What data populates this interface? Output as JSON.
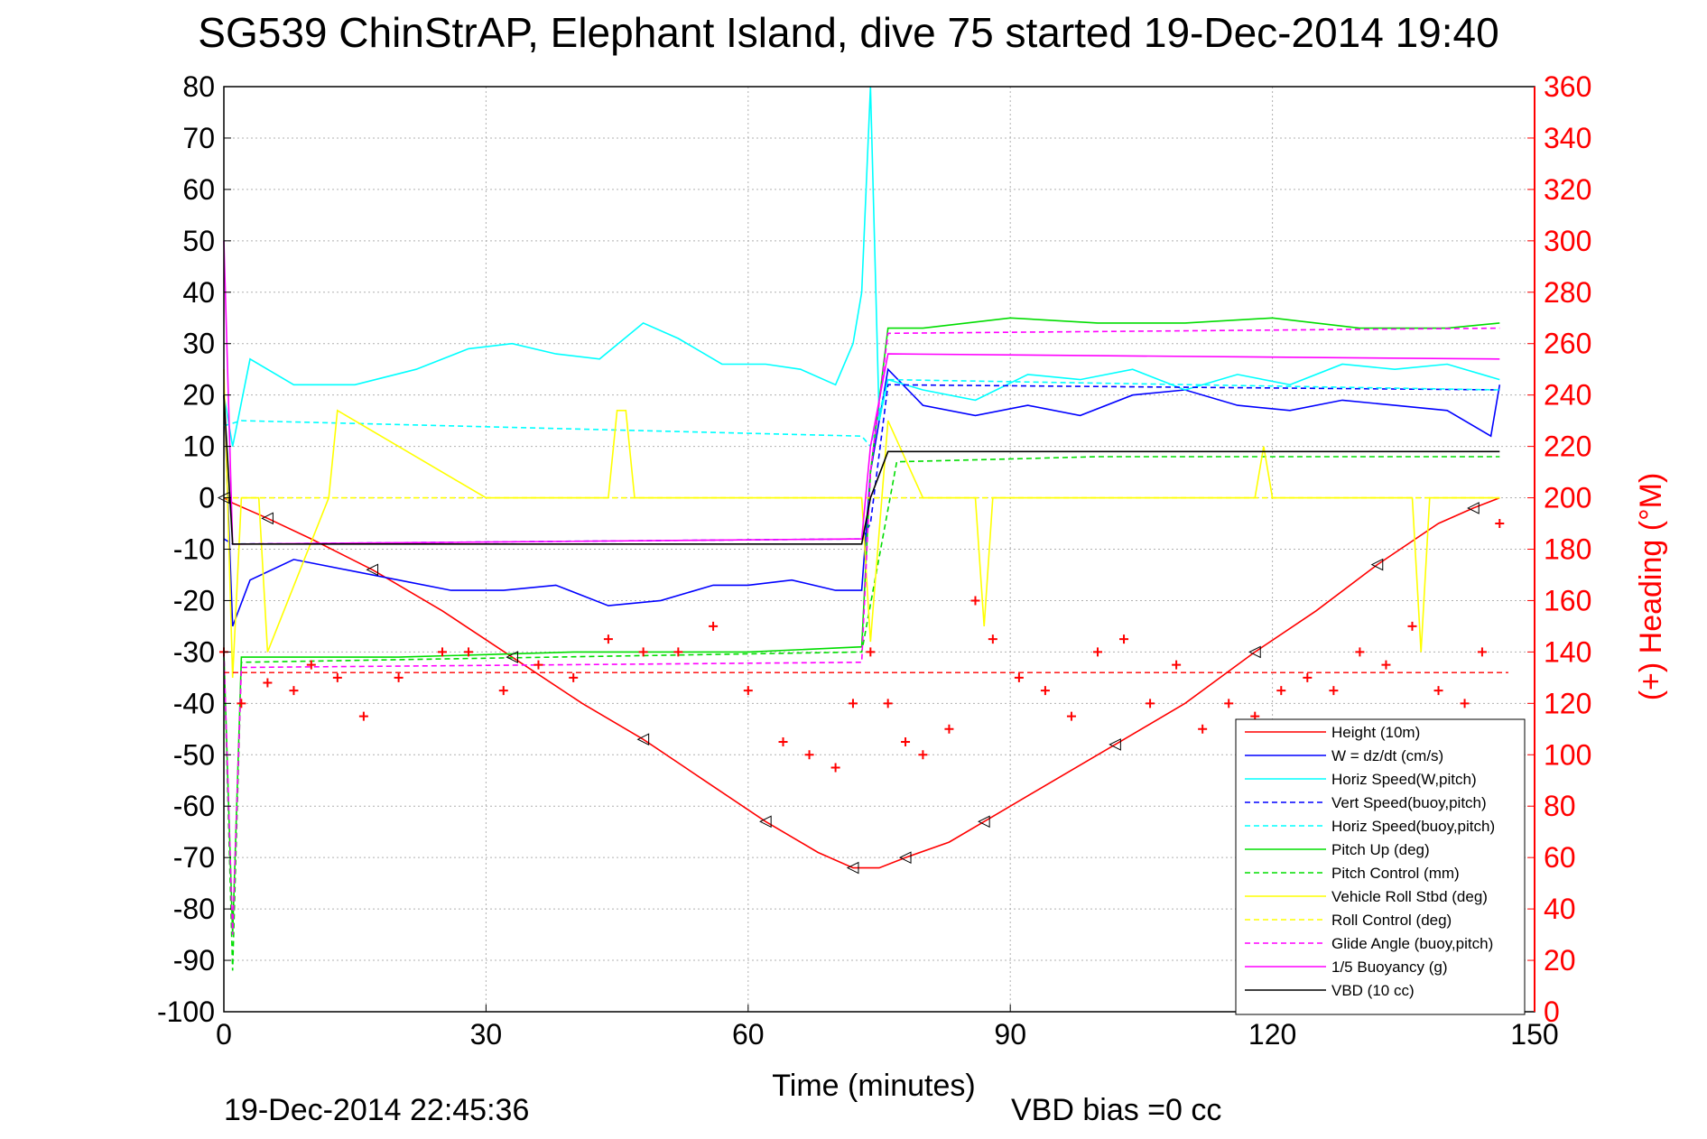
{
  "chart_data": {
    "type": "line",
    "title": "SG539 ChinStrAP, Elephant Island, dive 75 started 19-Dec-2014 19:40",
    "xlabel": "Time (minutes)",
    "ylabel_right": "(+) Heading (°M)",
    "footer_left": "19-Dec-2014 22:45:36",
    "footer_right": "VBD bias =0 cc",
    "xlim": [
      0,
      150
    ],
    "ylim_left": [
      -100,
      80
    ],
    "ylim_right": [
      0,
      360
    ],
    "x_ticks": [
      "0",
      "30",
      "60",
      "90",
      "120",
      "150"
    ],
    "y_ticks_left": [
      "80",
      "70",
      "60",
      "50",
      "40",
      "30",
      "20",
      "10",
      "0",
      "-10",
      "-20",
      "-30",
      "-40",
      "-50",
      "-60",
      "-70",
      "-80",
      "-90",
      "-100"
    ],
    "y_ticks_right": [
      "360",
      "340",
      "320",
      "300",
      "280",
      "260",
      "240",
      "220",
      "200",
      "180",
      "160",
      "140",
      "120",
      "100",
      "80",
      "60",
      "40",
      "20",
      "0"
    ],
    "grid": true,
    "legend_position": "bottom-right",
    "series": [
      {
        "name": "Height (10m)",
        "color": "#ff0000",
        "style": "solid",
        "x": [
          0,
          1,
          5,
          10,
          17,
          25,
          33,
          41,
          48,
          55,
          62,
          68,
          72,
          75,
          78,
          83,
          87,
          94,
          102,
          110,
          118,
          125,
          132,
          139,
          143,
          146
        ],
        "y": [
          0,
          -1,
          -4,
          -8,
          -14,
          -22,
          -31,
          -40,
          -47,
          -55,
          -63,
          -69,
          -72,
          -72,
          -70,
          -67,
          -63,
          -56,
          -48,
          -40,
          -30,
          -22,
          -13,
          -5,
          -2,
          0
        ]
      },
      {
        "name": "W = dz/dt (cm/s)",
        "color": "#0000ff",
        "style": "solid",
        "x": [
          0,
          1,
          3,
          8,
          14,
          20,
          26,
          32,
          38,
          44,
          50,
          56,
          60,
          65,
          70,
          73,
          74,
          76,
          80,
          86,
          92,
          98,
          104,
          110,
          116,
          122,
          128,
          134,
          140,
          145,
          146
        ],
        "y": [
          20,
          -25,
          -16,
          -12,
          -14,
          -16,
          -18,
          -18,
          -17,
          -21,
          -20,
          -17,
          -17,
          -16,
          -18,
          -18,
          5,
          25,
          18,
          16,
          18,
          16,
          20,
          21,
          18,
          17,
          19,
          18,
          17,
          12,
          22
        ]
      },
      {
        "name": "Horiz Speed(W,pitch)",
        "color": "#00ffff",
        "style": "solid",
        "x": [
          0,
          1,
          3,
          8,
          15,
          22,
          28,
          33,
          38,
          43,
          48,
          52,
          57,
          62,
          66,
          70,
          72,
          73,
          74,
          75,
          76,
          80,
          86,
          92,
          98,
          104,
          110,
          116,
          122,
          128,
          134,
          140,
          146
        ],
        "y": [
          20,
          10,
          27,
          22,
          22,
          25,
          29,
          30,
          28,
          27,
          34,
          31,
          26,
          26,
          25,
          22,
          30,
          40,
          80,
          15,
          23,
          21,
          19,
          24,
          23,
          25,
          21,
          24,
          22,
          26,
          25,
          26,
          23
        ]
      },
      {
        "name": "Vert Speed(buoy,pitch)",
        "color": "#0000ff",
        "style": "dash",
        "x": [
          0,
          1,
          73,
          74,
          76,
          146
        ],
        "y": [
          -8,
          -9,
          -8,
          -5,
          22,
          21
        ]
      },
      {
        "name": "Horiz Speed(buoy,pitch)",
        "color": "#00ffff",
        "style": "dash",
        "x": [
          0,
          2,
          73,
          74,
          76,
          146
        ],
        "y": [
          14,
          15,
          12,
          10,
          23,
          21
        ]
      },
      {
        "name": "Pitch Up (deg)",
        "color": "#00dd00",
        "style": "solid",
        "x": [
          0,
          1,
          2,
          20,
          40,
          60,
          73,
          74,
          76,
          80,
          90,
          100,
          110,
          120,
          130,
          140,
          146
        ],
        "y": [
          -30,
          -85,
          -31,
          -31,
          -30,
          -30,
          -29,
          5,
          33,
          33,
          35,
          34,
          34,
          35,
          33,
          33,
          34
        ]
      },
      {
        "name": "Pitch Control (mm)",
        "color": "#00dd00",
        "style": "dash",
        "x": [
          0,
          1,
          2,
          73,
          77,
          100,
          146
        ],
        "y": [
          -30,
          -92,
          -32,
          -30,
          7,
          8,
          8
        ]
      },
      {
        "name": "Vehicle Roll Stbd (deg)",
        "color": "#ffff00",
        "style": "solid",
        "x": [
          0,
          1,
          2,
          4,
          5,
          12,
          13,
          30,
          44,
          45,
          46,
          47,
          60,
          73,
          74,
          76,
          80,
          86,
          87,
          88,
          100,
          110,
          118,
          119,
          120,
          136,
          137,
          138,
          146
        ],
        "y": [
          25,
          -35,
          0,
          0,
          -30,
          0,
          17,
          0,
          0,
          17,
          17,
          0,
          0,
          0,
          -28,
          15,
          0,
          0,
          -25,
          0,
          0,
          0,
          0,
          10,
          0,
          0,
          -30,
          0,
          0
        ]
      },
      {
        "name": "Roll Control (deg)",
        "color": "#ffff00",
        "style": "dash",
        "x": [
          0,
          146
        ],
        "y": [
          0,
          0
        ]
      },
      {
        "name": "Glide Angle (buoy,pitch)",
        "color": "#ff00ff",
        "style": "dash",
        "x": [
          0,
          1,
          2,
          73,
          74,
          76,
          146
        ],
        "y": [
          -30,
          -85,
          -33,
          -32,
          5,
          32,
          33
        ]
      },
      {
        "name": "1/5 Buoyancy (g)",
        "color": "#ff00ff",
        "style": "solid",
        "x": [
          0,
          1,
          2,
          73,
          74,
          76,
          146
        ],
        "y": [
          50,
          -9,
          -9,
          -8,
          10,
          28,
          27
        ]
      },
      {
        "name": "VBD (10 cc)",
        "color": "#000000",
        "style": "solid",
        "x": [
          0,
          1,
          2,
          73,
          74,
          76,
          146
        ],
        "y": [
          20,
          -9,
          -9,
          -9,
          0,
          9,
          9
        ]
      }
    ],
    "heading": {
      "name": "(+) Heading",
      "color": "#ff0000",
      "axis": "right",
      "mean": 132,
      "x": [
        0,
        2,
        5,
        8,
        10,
        13,
        16,
        20,
        25,
        28,
        32,
        36,
        40,
        44,
        48,
        52,
        56,
        60,
        64,
        67,
        70,
        72,
        74,
        76,
        78,
        80,
        83,
        86,
        88,
        91,
        94,
        97,
        100,
        103,
        106,
        109,
        112,
        115,
        118,
        121,
        124,
        127,
        130,
        133,
        136,
        139,
        142,
        144,
        146
      ],
      "y": [
        140,
        120,
        128,
        125,
        135,
        130,
        115,
        130,
        140,
        140,
        125,
        135,
        130,
        145,
        140,
        140,
        150,
        125,
        105,
        100,
        95,
        120,
        140,
        120,
        105,
        100,
        110,
        160,
        145,
        130,
        125,
        115,
        140,
        145,
        120,
        135,
        110,
        120,
        115,
        125,
        130,
        125,
        140,
        135,
        150,
        125,
        120,
        140,
        190
      ]
    }
  }
}
